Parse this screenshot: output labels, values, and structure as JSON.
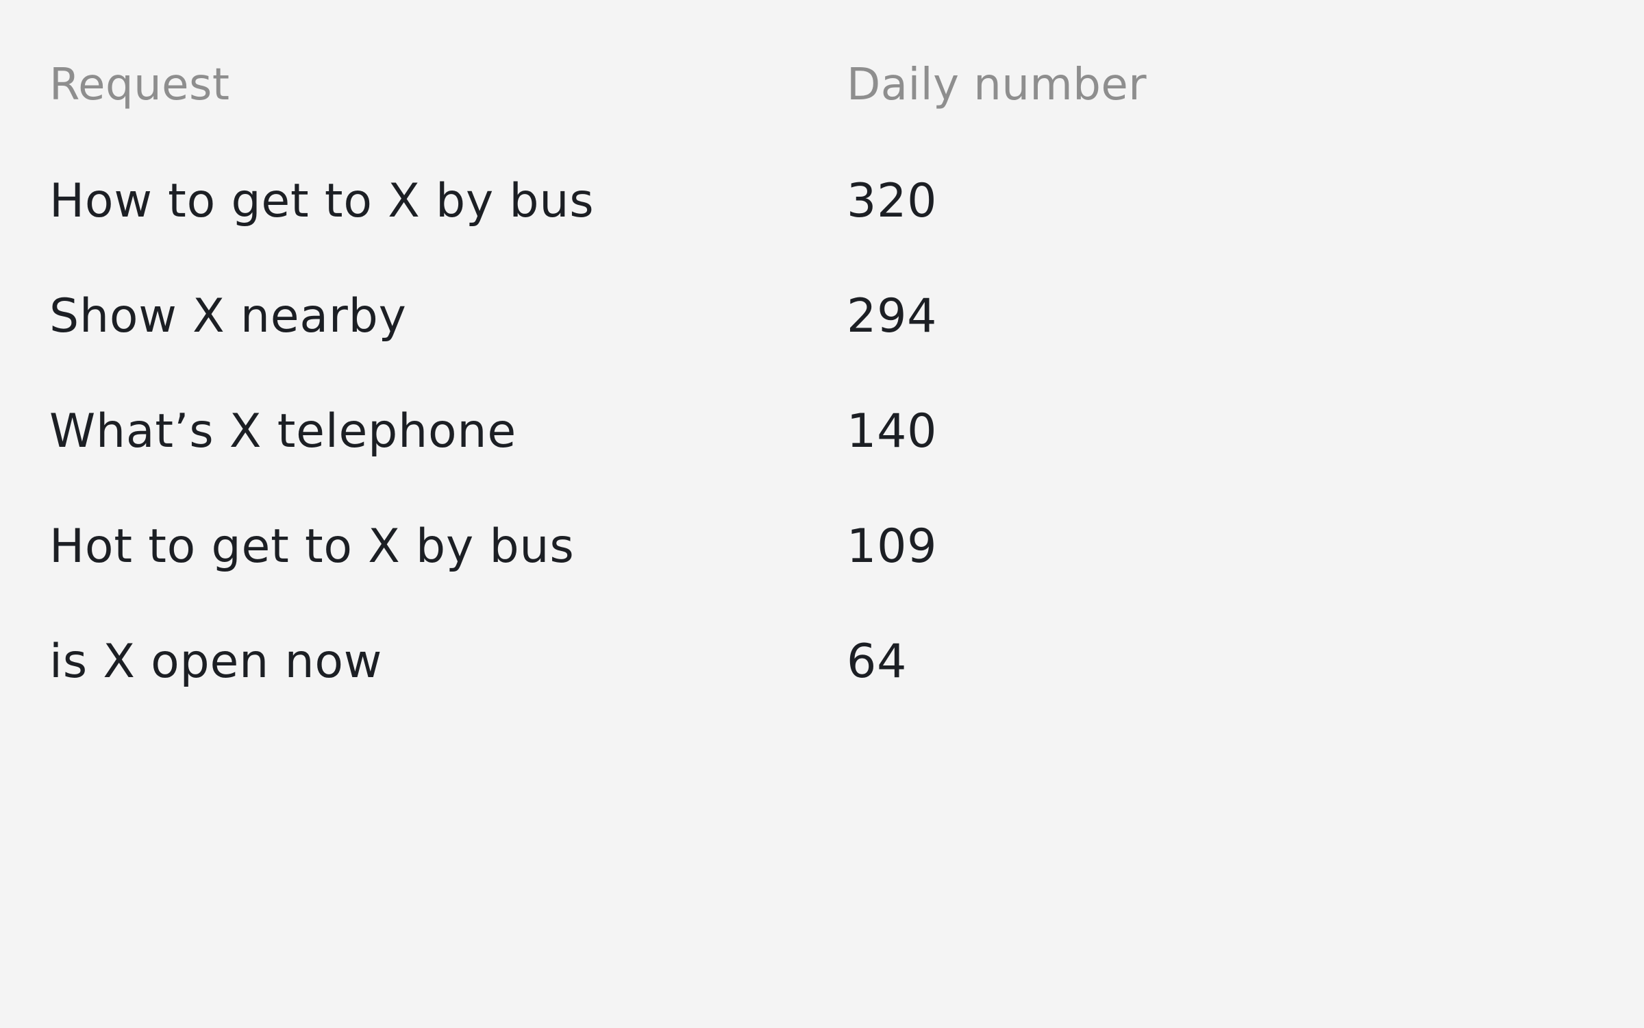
{
  "table": {
    "headers": {
      "request": "Request",
      "daily_number": "Daily number"
    },
    "rows": [
      {
        "request": "How to get to X by bus",
        "daily_number": "320"
      },
      {
        "request": "Show X nearby",
        "daily_number": "294"
      },
      {
        "request": "What’s X telephone",
        "daily_number": "140"
      },
      {
        "request": "Hot to get to X by bus",
        "daily_number": "109"
      },
      {
        "request": "is X open now",
        "daily_number": "64"
      }
    ]
  },
  "colors": {
    "background": "#f4f4f4",
    "header_text": "#8e8e8e",
    "body_text": "#1c1f24"
  }
}
